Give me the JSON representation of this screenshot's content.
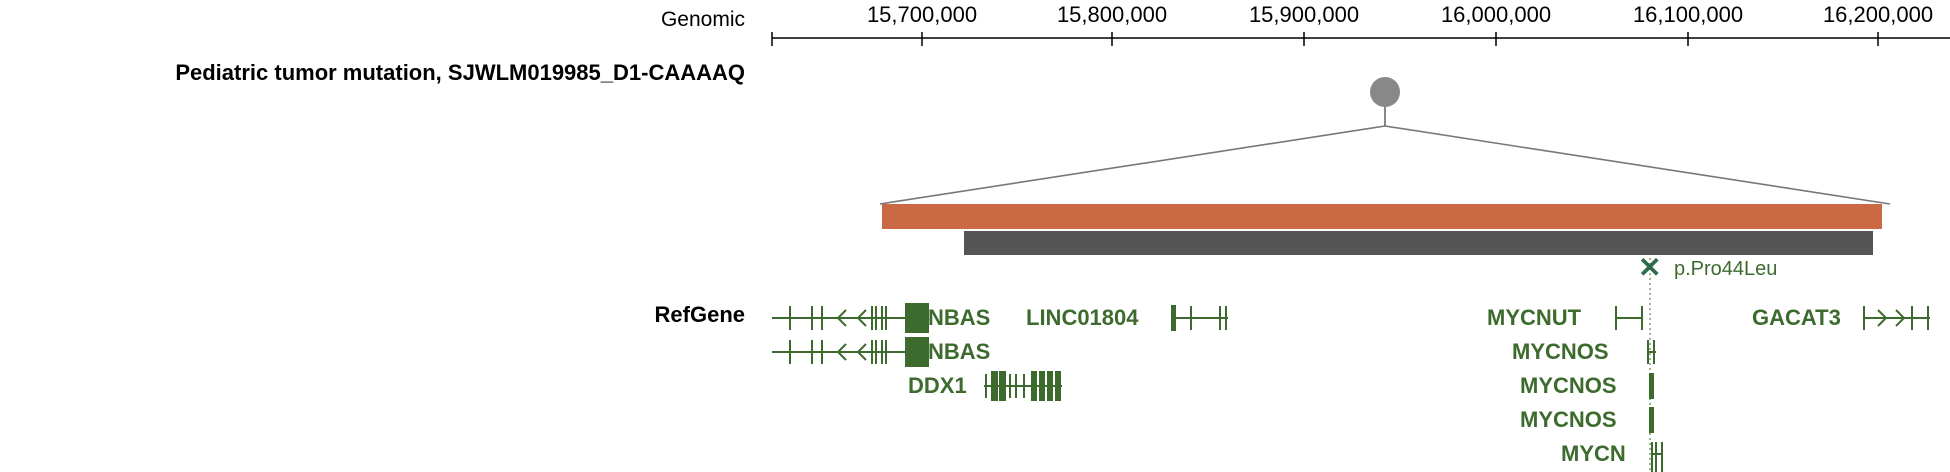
{
  "axis": {
    "title": "Genomic",
    "ticks": [
      "15,700,000",
      "15,800,000",
      "15,900,000",
      "16,000,000",
      "16,100,000",
      "16,200,000"
    ]
  },
  "mutation_track": {
    "title": "Pediatric tumor mutation, SJWLM019985_D1-CAAAAQ",
    "segments": [
      {
        "name": "cnv-bar",
        "color": "#c96a45"
      },
      {
        "name": "sv-bar",
        "color": "#555555"
      }
    ],
    "lollipop_color": "#888888",
    "snv": {
      "label": "p.Pro44Leu",
      "color": "#2e6b4a"
    }
  },
  "refgene": {
    "title": "RefGene",
    "color": "#3d6b2e",
    "genes": [
      "NBAS",
      "LINC01804",
      "MYCNUT",
      "GACAT3",
      "NBAS",
      "MYCNOS",
      "DDX1",
      "MYCNOS",
      "MYCNOS",
      "MYCN"
    ]
  }
}
